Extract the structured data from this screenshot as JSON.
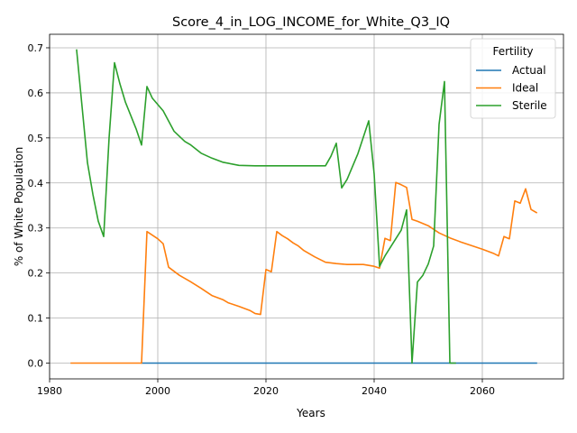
{
  "chart_data": {
    "type": "line",
    "title": "Score_4_in_LOG_INCOME_for_White_Q3_IQ",
    "xlabel": "Years",
    "ylabel": "% of White Population",
    "xlim": [
      1980,
      2075
    ],
    "ylim": [
      -0.035,
      0.73
    ],
    "xticks": [
      1980,
      2000,
      2020,
      2040,
      2060
    ],
    "yticks": [
      0.0,
      0.1,
      0.2,
      0.3,
      0.4,
      0.5,
      0.6,
      0.7
    ],
    "grid": true,
    "legend": {
      "title": "Fertility",
      "location": "top-right"
    },
    "series": [
      {
        "name": "Actual",
        "color": "#1f77b4",
        "points": [
          [
            1997,
            0.0
          ],
          [
            2000,
            0.0
          ],
          [
            2010,
            0.0
          ],
          [
            2020,
            0.0
          ],
          [
            2030,
            0.0
          ],
          [
            2040,
            0.0
          ],
          [
            2050,
            0.0
          ],
          [
            2060,
            0.0
          ],
          [
            2070,
            0.0
          ]
        ]
      },
      {
        "name": "Ideal",
        "color": "#ff7f0e",
        "points": [
          [
            1984,
            0.0
          ],
          [
            1997,
            0.0
          ],
          [
            1998,
            0.292
          ],
          [
            2000,
            0.276
          ],
          [
            2001,
            0.265
          ],
          [
            2002,
            0.213
          ],
          [
            2004,
            0.195
          ],
          [
            2006,
            0.181
          ],
          [
            2008,
            0.166
          ],
          [
            2010,
            0.15
          ],
          [
            2012,
            0.141
          ],
          [
            2013,
            0.134
          ],
          [
            2015,
            0.126
          ],
          [
            2017,
            0.117
          ],
          [
            2018,
            0.11
          ],
          [
            2019,
            0.108
          ],
          [
            2020,
            0.208
          ],
          [
            2021,
            0.203
          ],
          [
            2022,
            0.292
          ],
          [
            2023,
            0.283
          ],
          [
            2024,
            0.276
          ],
          [
            2025,
            0.267
          ],
          [
            2026,
            0.26
          ],
          [
            2027,
            0.25
          ],
          [
            2029,
            0.236
          ],
          [
            2031,
            0.224
          ],
          [
            2033,
            0.221
          ],
          [
            2035,
            0.219
          ],
          [
            2036,
            0.219
          ],
          [
            2038,
            0.219
          ],
          [
            2040,
            0.215
          ],
          [
            2041,
            0.211
          ],
          [
            2042,
            0.277
          ],
          [
            2043,
            0.272
          ],
          [
            2044,
            0.401
          ],
          [
            2045,
            0.396
          ],
          [
            2046,
            0.39
          ],
          [
            2047,
            0.319
          ],
          [
            2048,
            0.315
          ],
          [
            2050,
            0.305
          ],
          [
            2052,
            0.289
          ],
          [
            2054,
            0.278
          ],
          [
            2056,
            0.269
          ],
          [
            2058,
            0.261
          ],
          [
            2060,
            0.253
          ],
          [
            2062,
            0.244
          ],
          [
            2063,
            0.238
          ],
          [
            2064,
            0.281
          ],
          [
            2065,
            0.276
          ],
          [
            2066,
            0.36
          ],
          [
            2067,
            0.355
          ],
          [
            2068,
            0.387
          ],
          [
            2069,
            0.341
          ],
          [
            2070,
            0.334
          ]
        ]
      },
      {
        "name": "Sterile",
        "color": "#2ca02c",
        "points": [
          [
            1985,
            0.695
          ],
          [
            1986,
            0.57
          ],
          [
            1987,
            0.445
          ],
          [
            1988,
            0.375
          ],
          [
            1989,
            0.315
          ],
          [
            1990,
            0.281
          ],
          [
            1991,
            0.5
          ],
          [
            1992,
            0.667
          ],
          [
            1993,
            0.62
          ],
          [
            1994,
            0.58
          ],
          [
            1996,
            0.52
          ],
          [
            1997,
            0.484
          ],
          [
            1998,
            0.614
          ],
          [
            1999,
            0.588
          ],
          [
            2001,
            0.56
          ],
          [
            2003,
            0.515
          ],
          [
            2005,
            0.492
          ],
          [
            2006,
            0.485
          ],
          [
            2008,
            0.466
          ],
          [
            2010,
            0.455
          ],
          [
            2012,
            0.446
          ],
          [
            2015,
            0.439
          ],
          [
            2018,
            0.438
          ],
          [
            2020,
            0.438
          ],
          [
            2025,
            0.438
          ],
          [
            2031,
            0.438
          ],
          [
            2032,
            0.459
          ],
          [
            2033,
            0.488
          ],
          [
            2034,
            0.389
          ],
          [
            2035,
            0.408
          ],
          [
            2037,
            0.465
          ],
          [
            2039,
            0.538
          ],
          [
            2040,
            0.42
          ],
          [
            2041,
            0.215
          ],
          [
            2042,
            0.238
          ],
          [
            2045,
            0.295
          ],
          [
            2046,
            0.34
          ],
          [
            2047,
            0.0
          ],
          [
            2048,
            0.18
          ],
          [
            2049,
            0.195
          ],
          [
            2050,
            0.22
          ],
          [
            2051,
            0.26
          ],
          [
            2052,
            0.53
          ],
          [
            2053,
            0.625
          ],
          [
            2054,
            0.0
          ],
          [
            2055,
            0.0
          ]
        ]
      }
    ]
  }
}
